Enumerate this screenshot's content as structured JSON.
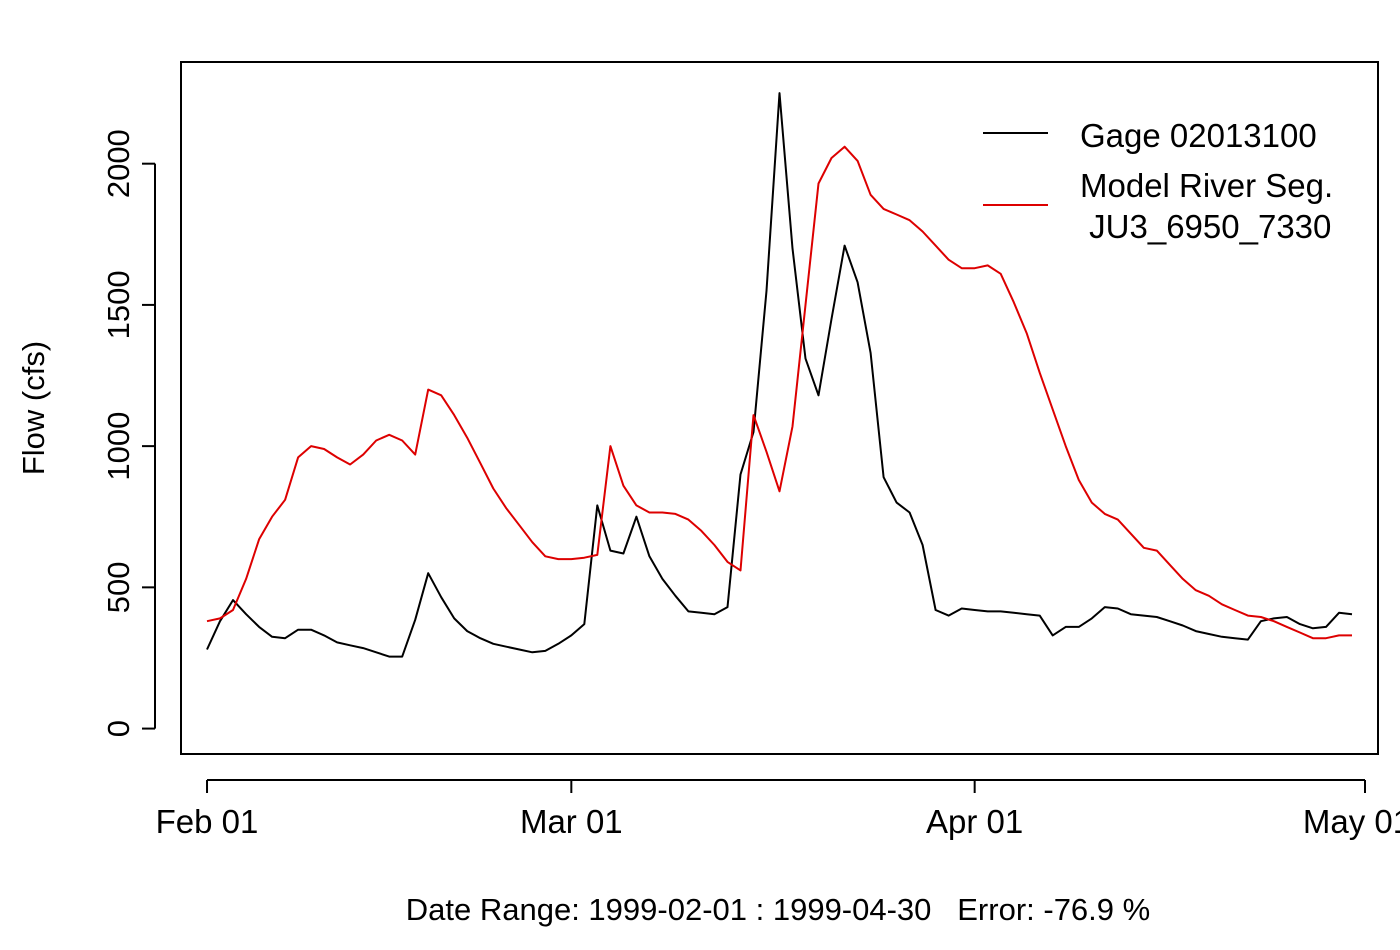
{
  "chart_data": {
    "type": "line",
    "title": "",
    "xlabel": "Date Range: 1999-02-01 : 1999-04-30   Error: -76.9 %",
    "ylabel": "Flow (cfs)",
    "x_start": "1999-02-01",
    "x_end": "1999-04-30",
    "xlim": [
      "1999-01-30",
      "1999-05-02"
    ],
    "ylim": [
      -90,
      2360
    ],
    "x_ticks": [
      {
        "date": "1999-02-01",
        "label": "Feb 01"
      },
      {
        "date": "1999-03-01",
        "label": "Mar 01"
      },
      {
        "date": "1999-04-01",
        "label": "Apr 01"
      },
      {
        "date": "1999-05-01",
        "label": "May 01"
      }
    ],
    "y_ticks": [
      0,
      500,
      1000,
      1500,
      2000
    ],
    "grid": false,
    "legend_position": "top-right",
    "series": [
      {
        "name": "Gage 02013100",
        "color": "#000000",
        "values": [
          280,
          380,
          455,
          405,
          360,
          325,
          320,
          350,
          350,
          330,
          305,
          295,
          285,
          270,
          255,
          255,
          385,
          550,
          465,
          390,
          345,
          320,
          300,
          290,
          280,
          270,
          275,
          300,
          330,
          370,
          790,
          630,
          620,
          750,
          610,
          530,
          470,
          415,
          410,
          405,
          430,
          900,
          1050,
          1550,
          2250,
          1700,
          1310,
          1180,
          1450,
          1710,
          1580,
          1330,
          890,
          800,
          765,
          650,
          420,
          400,
          425,
          420,
          415,
          415,
          410,
          405,
          400,
          330,
          360,
          360,
          390,
          430,
          425,
          405,
          400,
          395,
          380,
          365,
          345,
          335,
          325,
          320,
          315,
          380,
          390,
          395,
          370,
          355,
          360,
          410,
          405
        ]
      },
      {
        "name": "Model River Seg. JU3_6950_7330",
        "label_lines": [
          "Model River Seg.",
          " JU3_6950_7330"
        ],
        "color": "#dd0000",
        "values": [
          380,
          390,
          420,
          530,
          670,
          750,
          810,
          960,
          1000,
          990,
          960,
          935,
          970,
          1020,
          1040,
          1020,
          970,
          1200,
          1180,
          1110,
          1030,
          940,
          850,
          780,
          720,
          660,
          610,
          600,
          600,
          605,
          615,
          1000,
          860,
          790,
          765,
          765,
          760,
          740,
          700,
          650,
          590,
          560,
          1110,
          980,
          840,
          1070,
          1500,
          1930,
          2020,
          2060,
          2010,
          1890,
          1840,
          1820,
          1800,
          1760,
          1710,
          1660,
          1630,
          1630,
          1640,
          1610,
          1510,
          1400,
          1260,
          1130,
          1000,
          880,
          800,
          760,
          740,
          690,
          640,
          630,
          580,
          530,
          490,
          470,
          440,
          420,
          400,
          395,
          380,
          360,
          340,
          320,
          320,
          330,
          330
        ]
      }
    ]
  }
}
